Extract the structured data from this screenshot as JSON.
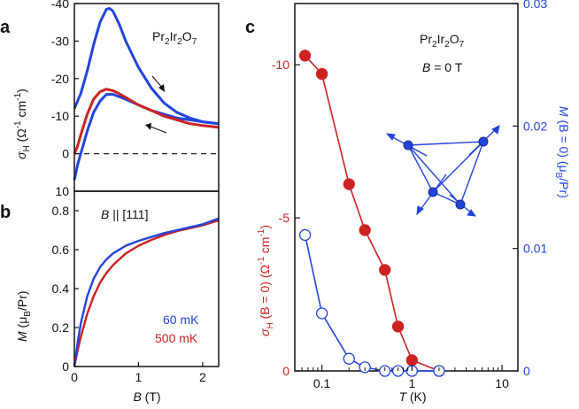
{
  "colors": {
    "red": "#cc2222",
    "blue": "#2244dd",
    "black": "#111111",
    "dash": "#222222"
  },
  "chart_data": [
    {
      "id": "a",
      "type": "line",
      "panel_label": "a",
      "material": {
        "base1": "Pr",
        "sub1": "2",
        "base2": "Ir",
        "sub2": "2",
        "base3": "O",
        "sub3": "7"
      },
      "ylabel": {
        "sym": "σ",
        "sub": "H",
        "unit_pre": " (Ω",
        "exp1": "-1",
        "unit_mid": " cm",
        "exp2": "-1",
        "unit_post": ")"
      },
      "xlim": [
        0,
        2.25
      ],
      "ylim": [
        10,
        -40
      ],
      "yticks": [
        "-40",
        "-30",
        "-20",
        "-10",
        "0",
        "10"
      ],
      "ytick_values": [
        -40,
        -30,
        -20,
        -10,
        0,
        10
      ],
      "zero_line": "dashed",
      "series": [
        {
          "name": "60 mK sweep down",
          "color": "blue",
          "x": [
            0,
            0.05,
            0.1,
            0.2,
            0.3,
            0.4,
            0.5,
            0.55,
            0.6,
            0.7,
            0.8,
            1.0,
            1.2,
            1.4,
            1.6,
            1.8,
            2.0,
            2.25
          ],
          "y": [
            -12,
            -14,
            -16,
            -22,
            -29,
            -35,
            -38.5,
            -38.7,
            -38,
            -34.5,
            -30,
            -23,
            -17.5,
            -13.5,
            -11,
            -9.5,
            -8.5,
            -8
          ]
        },
        {
          "name": "60 mK sweep up",
          "color": "blue",
          "x": [
            0,
            0.05,
            0.1,
            0.2,
            0.3,
            0.4,
            0.5,
            0.6,
            0.7,
            0.8,
            1.0,
            1.2,
            1.4,
            1.6,
            1.8,
            2.0,
            2.25
          ],
          "y": [
            7,
            3,
            0,
            -6,
            -11,
            -14,
            -15.8,
            -15.8,
            -15.2,
            -14.5,
            -13,
            -11.5,
            -10.5,
            -9.5,
            -9,
            -8.5,
            -8
          ]
        },
        {
          "name": "500 mK",
          "color": "red",
          "x": [
            0,
            0.05,
            0.1,
            0.2,
            0.3,
            0.4,
            0.5,
            0.6,
            0.7,
            0.8,
            1.0,
            1.2,
            1.4,
            1.6,
            1.8,
            2.0,
            2.25
          ],
          "y": [
            0,
            -2,
            -5,
            -10.5,
            -14.5,
            -16.5,
            -17.2,
            -16.8,
            -16,
            -15,
            -13,
            -11.5,
            -10,
            -9,
            -8,
            -7.5,
            -7
          ]
        }
      ],
      "arrows": [
        "down-right near 60 mK peak",
        "left near 1.5 T"
      ]
    },
    {
      "id": "b",
      "type": "line",
      "panel_label": "b",
      "field_note": {
        "sym": "B",
        "rest": " || [111]"
      },
      "ylabel": {
        "sym": "M",
        "pre": " (μ",
        "sub": "B",
        "post": "/Pr)"
      },
      "xlabel": {
        "sym": "B",
        "unit": " (T)"
      },
      "xlim": [
        0,
        2.25
      ],
      "ylim": [
        0,
        0.9
      ],
      "xticks": [
        "0",
        "1",
        "2"
      ],
      "xtick_values": [
        0,
        1,
        2
      ],
      "yticks": [
        "0",
        "0.2",
        "0.4",
        "0.6",
        "0.8"
      ],
      "ytick_values": [
        0,
        0.2,
        0.4,
        0.6,
        0.8
      ],
      "legend": [
        {
          "label": "60 mK",
          "color": "blue"
        },
        {
          "label": "500 mK",
          "color": "red"
        }
      ],
      "series": [
        {
          "name": "60 mK",
          "color": "blue",
          "x": [
            0,
            0.05,
            0.1,
            0.2,
            0.3,
            0.4,
            0.5,
            0.6,
            0.8,
            1.0,
            1.2,
            1.4,
            1.6,
            1.8,
            2.0,
            2.25
          ],
          "y": [
            0,
            0.12,
            0.22,
            0.36,
            0.45,
            0.51,
            0.55,
            0.58,
            0.62,
            0.645,
            0.665,
            0.685,
            0.7,
            0.715,
            0.73,
            0.76
          ]
        },
        {
          "name": "500 mK",
          "color": "red",
          "x": [
            0,
            0.05,
            0.1,
            0.2,
            0.3,
            0.4,
            0.5,
            0.6,
            0.8,
            1.0,
            1.2,
            1.4,
            1.6,
            1.8,
            2.0,
            2.25
          ],
          "y": [
            0,
            0.08,
            0.15,
            0.27,
            0.36,
            0.43,
            0.48,
            0.52,
            0.58,
            0.62,
            0.65,
            0.675,
            0.695,
            0.71,
            0.725,
            0.75
          ]
        }
      ]
    },
    {
      "id": "c",
      "type": "scatter-line",
      "panel_label": "c",
      "material": {
        "base1": "Pr",
        "sub1": "2",
        "base2": "Ir",
        "sub2": "2",
        "base3": "O",
        "sub3": "7"
      },
      "field_note": {
        "sym": "B",
        "rest": " = 0 T"
      },
      "xscale": "log",
      "xlim": [
        0.05,
        15
      ],
      "xticks": [
        "0.1",
        "1",
        "10"
      ],
      "xtick_values": [
        0.1,
        1,
        10
      ],
      "xlabel": {
        "sym": "T",
        "unit": " (K)"
      },
      "left_axis": {
        "color": "red",
        "ylim": [
          0,
          -12
        ],
        "yticks": [
          "0",
          "-5",
          "-10"
        ],
        "ytick_values": [
          0,
          -5,
          -10
        ],
        "label": {
          "sym": "σ",
          "sub": "H",
          "mid": " (B = 0) (Ω",
          "exp1": "-1",
          "cm": " cm",
          "exp2": "-1",
          "post": ")"
        }
      },
      "right_axis": {
        "color": "blue",
        "ylim": [
          0,
          0.03
        ],
        "yticks": [
          "0",
          "0.01",
          "0.02",
          "0.03"
        ],
        "ytick_values": [
          0,
          0.01,
          0.02,
          0.03
        ],
        "label": {
          "sym": "M",
          "mid": " (B = 0) (μ",
          "sub": "B",
          "post": "/Pr)"
        }
      },
      "series": [
        {
          "name": "sigma_H (B=0)",
          "axis": "left",
          "color": "red",
          "marker": "filled",
          "x": [
            0.065,
            0.1,
            0.2,
            0.3,
            0.5,
            0.7,
            1.0,
            2.0
          ],
          "y": [
            -10.3,
            -9.7,
            -6.1,
            -4.6,
            -3.3,
            -1.45,
            -0.35,
            0
          ]
        },
        {
          "name": "M (B=0)",
          "axis": "right",
          "color": "blue",
          "marker": "open",
          "x": [
            0.065,
            0.1,
            0.2,
            0.3,
            0.5,
            0.7,
            1.0,
            2.0
          ],
          "y": [
            0.0111,
            0.0047,
            0.001,
            0.0003,
            0,
            0,
            0,
            0
          ]
        }
      ]
    }
  ]
}
